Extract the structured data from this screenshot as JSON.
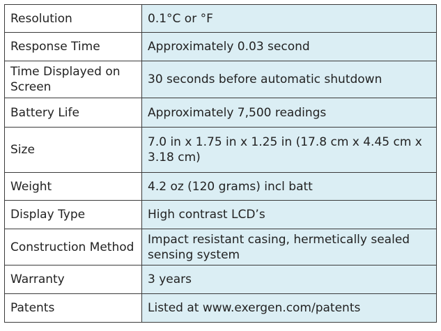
{
  "table": {
    "rows": [
      [
        "Resolution",
        "0.1°C or °F"
      ],
      [
        "Response Time",
        "Approximately 0.03 second"
      ],
      [
        "Time Displayed on Screen",
        "30 seconds before automatic shutdown"
      ],
      [
        "Battery Life",
        "Approximately 7,500 readings"
      ],
      [
        "Size",
        "7.0 in x 1.75 in x 1.25 in (17.8 cm x 4.45 cm x 3.18 cm)"
      ],
      [
        "Weight",
        "4.2 oz (120 grams) incl batt"
      ],
      [
        "Display Type",
        "High contrast LCD’s"
      ],
      [
        "Construction Method",
        "Impact resistant casing, hermetically sealed sensing system"
      ],
      [
        "Warranty",
        "3 years"
      ],
      [
        "Patents",
        "Listed at www.exergen.com/patents"
      ]
    ]
  }
}
